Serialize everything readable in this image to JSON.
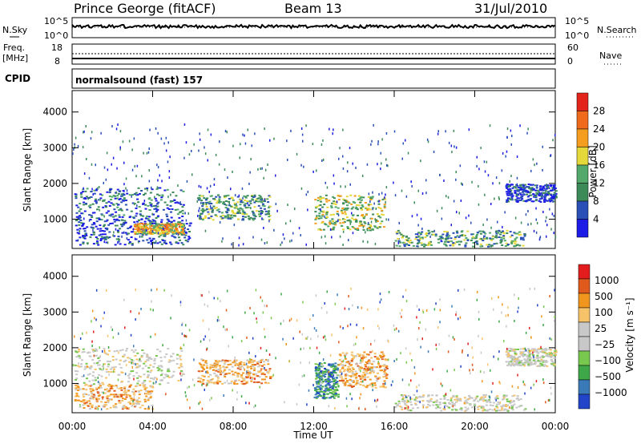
{
  "header": {
    "station": "Prince George (fitACF)",
    "beam": "Beam 13",
    "date": "31/Jul/2010"
  },
  "left_labels": {
    "nsky": "N.Sky",
    "freq": "Freq.",
    "freq_unit": "[MHz]",
    "cpid": "CPID"
  },
  "right_labels": {
    "nsearch": "N.Search",
    "nave": "Nave"
  },
  "scale_labels": {
    "noise_top": "10^5",
    "noise_bottom": "10^0",
    "freq_top": "18",
    "freq_bottom": "8",
    "nave_top": "60",
    "nave_bottom": "0"
  },
  "cpid_text": "normalsound (fast) 157",
  "colors": {
    "power": [
      "#1c1ce6",
      "#2a4fb6",
      "#3c8a58",
      "#53a96b",
      "#e5d83a",
      "#f59d1f",
      "#f06a1d",
      "#e3241a"
    ],
    "velocity": [
      "#2244c8",
      "#3a7ab8",
      "#3ea848",
      "#78c850",
      "#c8c8c8",
      "#c8c8c8",
      "#f7c36a",
      "#f0961e",
      "#e05a1e",
      "#e31d1d"
    ],
    "power_bar": [
      "#1c1ce6",
      "#2a4fb6",
      "#3c8a58",
      "#53a96b",
      "#e5d83a",
      "#f59d1f",
      "#f06a1d",
      "#e3241a"
    ],
    "velocity_bar": [
      "#2244c8",
      "#3a7ab8",
      "#3ea848",
      "#78c850",
      "#c8c8c8",
      "#c8c8c8",
      "#f7c36a",
      "#f0961e",
      "#e05a1e",
      "#e31d1d"
    ]
  },
  "chart_data": [
    {
      "type": "line",
      "panel": "noise",
      "series": [
        {
          "name": "N.Sky"
        },
        {
          "name": "N.Search"
        }
      ]
    },
    {
      "type": "line",
      "panel": "frequency",
      "series": [
        {
          "name": "Freq."
        },
        {
          "name": "Nave"
        }
      ]
    },
    {
      "type": "heatmap",
      "panel": "power",
      "ylabel": "Slant Range [km]",
      "xlabel": "Time UT",
      "yticks": [
        "1000",
        "2000",
        "3000",
        "4000"
      ],
      "xticks": [
        "00:00",
        "04:00",
        "08:00",
        "12:00",
        "16:00",
        "20:00",
        "00:00"
      ],
      "xlim_hours": [
        0,
        24
      ],
      "ylim_km": [
        180,
        4600
      ],
      "colorbar_label": "Power [dB]",
      "colorbar_ticks": [
        "4",
        "8",
        "12",
        "16",
        "20",
        "24",
        "28"
      ],
      "colorbar_range": [
        0,
        32
      ],
      "regions": [
        {
          "t0": 0.1,
          "t1": 5.5,
          "r0": 1000,
          "r1": 1900,
          "v": 12
        },
        {
          "t0": 0.1,
          "t1": 5.9,
          "r0": 300,
          "r1": 1000,
          "v": 10
        },
        {
          "t0": 3.0,
          "t1": 5.5,
          "r0": 600,
          "r1": 900,
          "v": 24
        },
        {
          "t0": 6.2,
          "t1": 9.8,
          "r0": 1000,
          "r1": 1700,
          "v": 18
        },
        {
          "t0": 12.0,
          "t1": 15.5,
          "r0": 700,
          "r1": 1700,
          "v": 22
        },
        {
          "t0": 16.0,
          "t1": 22.5,
          "r0": 250,
          "r1": 700,
          "v": 16
        },
        {
          "t0": 21.5,
          "t1": 24.0,
          "r0": 1500,
          "r1": 2000,
          "v": 8
        }
      ]
    },
    {
      "type": "heatmap",
      "panel": "velocity",
      "ylabel": "Slant Range [km]",
      "xlabel": "Time UT",
      "yticks": [
        "1000",
        "2000",
        "3000",
        "4000"
      ],
      "xticks": [
        "00:00",
        "04:00",
        "08:00",
        "12:00",
        "16:00",
        "20:00",
        "00:00"
      ],
      "xlim_hours": [
        0,
        24
      ],
      "ylim_km": [
        180,
        4600
      ],
      "colorbar_label": "Velocity [m s⁻¹]",
      "colorbar_ticks": [
        "1000",
        "500",
        "100",
        "25",
        "−25",
        "−100",
        "−500",
        "−1000"
      ],
      "regions": [
        {
          "t0": 0.1,
          "t1": 5.5,
          "r0": 1000,
          "r1": 2000,
          "c": 5
        },
        {
          "t0": 0.1,
          "t1": 4.0,
          "r0": 300,
          "r1": 1000,
          "c": 7
        },
        {
          "t0": 6.2,
          "t1": 9.8,
          "r0": 1000,
          "r1": 1700,
          "c": 7
        },
        {
          "t0": 12.0,
          "t1": 13.2,
          "r0": 600,
          "r1": 1600,
          "c": 2
        },
        {
          "t0": 13.2,
          "t1": 15.6,
          "r0": 900,
          "r1": 1900,
          "c": 7
        },
        {
          "t0": 16.0,
          "t1": 22.5,
          "r0": 250,
          "r1": 700,
          "c": 5
        },
        {
          "t0": 21.5,
          "t1": 24.0,
          "r0": 1500,
          "r1": 2000,
          "c": 5
        }
      ]
    }
  ]
}
